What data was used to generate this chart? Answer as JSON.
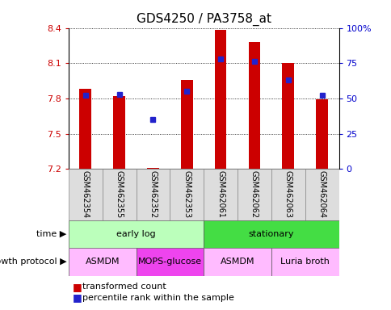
{
  "title": "GDS4250 / PA3758_at",
  "samples": [
    "GSM462354",
    "GSM462355",
    "GSM462352",
    "GSM462353",
    "GSM462061",
    "GSM462062",
    "GSM462063",
    "GSM462064"
  ],
  "transformed_count": [
    7.88,
    7.82,
    7.21,
    7.96,
    8.38,
    8.28,
    8.1,
    7.79
  ],
  "percentile_rank": [
    52,
    53,
    35,
    55,
    78,
    76,
    63,
    52
  ],
  "ylim": [
    7.2,
    8.4
  ],
  "y_ticks_left": [
    7.2,
    7.5,
    7.8,
    8.1,
    8.4
  ],
  "y_ticks_right": [
    0,
    25,
    50,
    75,
    100
  ],
  "y_ticks_right_labels": [
    "0",
    "25",
    "50",
    "75",
    "100%"
  ],
  "bar_color": "#cc0000",
  "dot_color": "#2222cc",
  "bar_width": 0.35,
  "time_labels": [
    {
      "label": "early log",
      "span": [
        0,
        4
      ],
      "color": "#bbffbb"
    },
    {
      "label": "stationary",
      "span": [
        4,
        8
      ],
      "color": "#44dd44"
    }
  ],
  "protocol_labels": [
    {
      "label": "ASMDM",
      "span": [
        0,
        2
      ],
      "color": "#ffbbff"
    },
    {
      "label": "MOPS-glucose",
      "span": [
        2,
        4
      ],
      "color": "#ee44ee"
    },
    {
      "label": "ASMDM",
      "span": [
        4,
        6
      ],
      "color": "#ffbbff"
    },
    {
      "label": "Luria broth",
      "span": [
        6,
        8
      ],
      "color": "#ffbbff"
    }
  ],
  "legend_red_label": "transformed count",
  "legend_blue_label": "percentile rank within the sample",
  "time_arrow_label": "time",
  "protocol_arrow_label": "growth protocol",
  "title_fontsize": 11,
  "tick_fontsize": 8,
  "label_fontsize": 8,
  "sample_fontsize": 7,
  "row_fontsize": 8,
  "legend_fontsize": 8
}
